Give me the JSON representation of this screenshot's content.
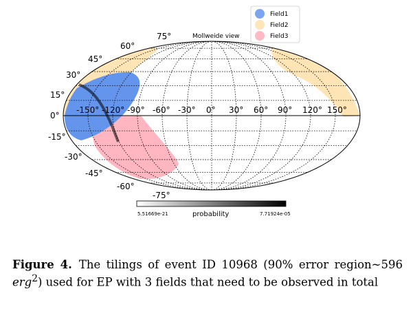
{
  "figure": {
    "title": "Mollweide view",
    "latitude_labels": [
      "75°",
      "60°",
      "45°",
      "30°",
      "15°",
      "0°",
      "-15°",
      "-30°",
      "-45°",
      "-60°",
      "-75°"
    ],
    "longitude_labels": [
      "-150°",
      "-120°",
      "-90°",
      "-60°",
      "-30°",
      "0°",
      "30°",
      "60°",
      "90°",
      "120°",
      "150°"
    ],
    "legend": [
      {
        "label": "Field1",
        "color": "#6495ED"
      },
      {
        "label": "Field2",
        "color": "#FFE4B5"
      },
      {
        "label": "Field3",
        "color": "#FFB6C1"
      }
    ],
    "colorbar": {
      "min_label": "5.51669e-21",
      "max_label": "7.71924e-05",
      "label": "probability"
    }
  },
  "caption": {
    "figure_number": "Figure 4.",
    "text_before_unit": "The tilings of event ID 10968 (90% error region~596 ",
    "unit_base": "erg",
    "unit_exp": "2",
    "text_after_unit": ") used for EP with 3 fields that need to be observed in total"
  }
}
